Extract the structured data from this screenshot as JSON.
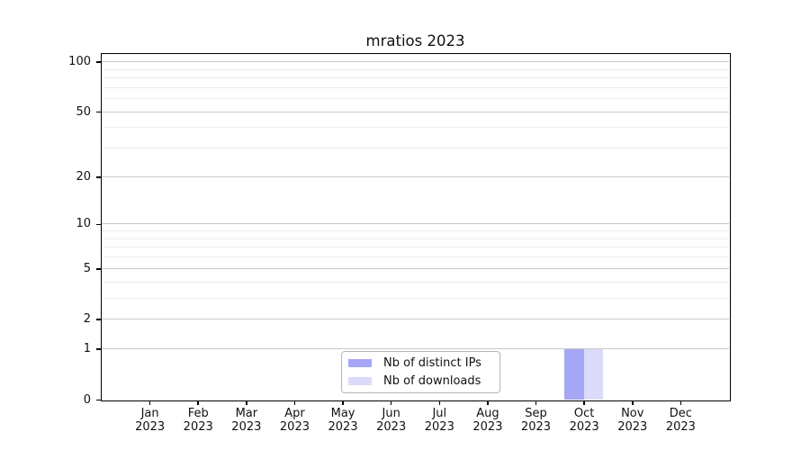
{
  "chart_data": {
    "type": "bar",
    "title": "mratios 2023",
    "categories": [
      "Jan",
      "Feb",
      "Mar",
      "Apr",
      "May",
      "Jun",
      "Jul",
      "Aug",
      "Sep",
      "Oct",
      "Nov",
      "Dec"
    ],
    "year_label": "2023",
    "series": [
      {
        "name": "Nb of distinct IPs",
        "color": "#a6a6f6",
        "values": [
          0,
          0,
          0,
          0,
          0,
          0,
          0,
          0,
          0,
          1,
          0,
          0
        ]
      },
      {
        "name": "Nb of downloads",
        "color": "#dadafb",
        "values": [
          0,
          0,
          0,
          0,
          0,
          0,
          0,
          0,
          0,
          1,
          0,
          0
        ]
      }
    ],
    "yscale": "log1p",
    "ylim": [
      0,
      112
    ],
    "yticks": [
      0,
      1,
      2,
      5,
      10,
      20,
      50,
      100
    ],
    "yticks_minor": [
      3,
      4,
      6,
      7,
      8,
      9,
      30,
      40,
      60,
      70,
      80,
      90
    ],
    "grid": "horizontal",
    "legend_position": "lower center"
  },
  "colors": {
    "grid_major": "#c9c9c9",
    "grid_minor": "#ececec",
    "axis_spine": "#000000",
    "legend_border": "#b5b5b5",
    "background": "#ffffff"
  }
}
